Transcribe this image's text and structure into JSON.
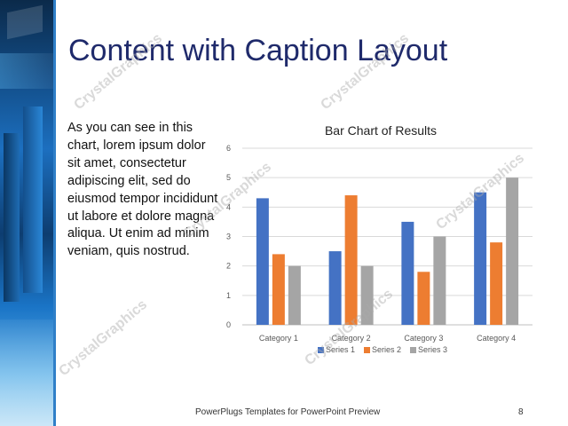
{
  "slide": {
    "title": "Content with Caption Layout",
    "caption": "As you can see in this chart, lorem ipsum dolor sit amet, consectetur adipiscing elit, sed do eiusmod tempor incididunt ut labore et dolore magna aliqua. Ut enim ad minim veniam, quis nostrud.",
    "footer": "PowerPlugs Templates for PowerPoint Preview",
    "page_number": "8",
    "watermark": "CrystalGraphics"
  },
  "colors": {
    "title": "#1f2a6b",
    "series1": "#4472c4",
    "series2": "#ed7d31",
    "series3": "#a5a5a5",
    "accent": "#2f7fc8"
  },
  "chart_data": {
    "type": "bar",
    "title": "Bar Chart of Results",
    "categories": [
      "Category 1",
      "Category 2",
      "Category 3",
      "Category 4"
    ],
    "series": [
      {
        "name": "Series 1",
        "values": [
          4.3,
          2.5,
          3.5,
          4.5
        ]
      },
      {
        "name": "Series 2",
        "values": [
          2.4,
          4.4,
          1.8,
          2.8
        ]
      },
      {
        "name": "Series 3",
        "values": [
          2,
          2,
          3,
          5
        ]
      }
    ],
    "ylim": [
      0,
      6
    ],
    "yticks": [
      "0",
      "1",
      "2",
      "3",
      "4",
      "5",
      "6"
    ],
    "grid": true,
    "legend": "bottom"
  }
}
